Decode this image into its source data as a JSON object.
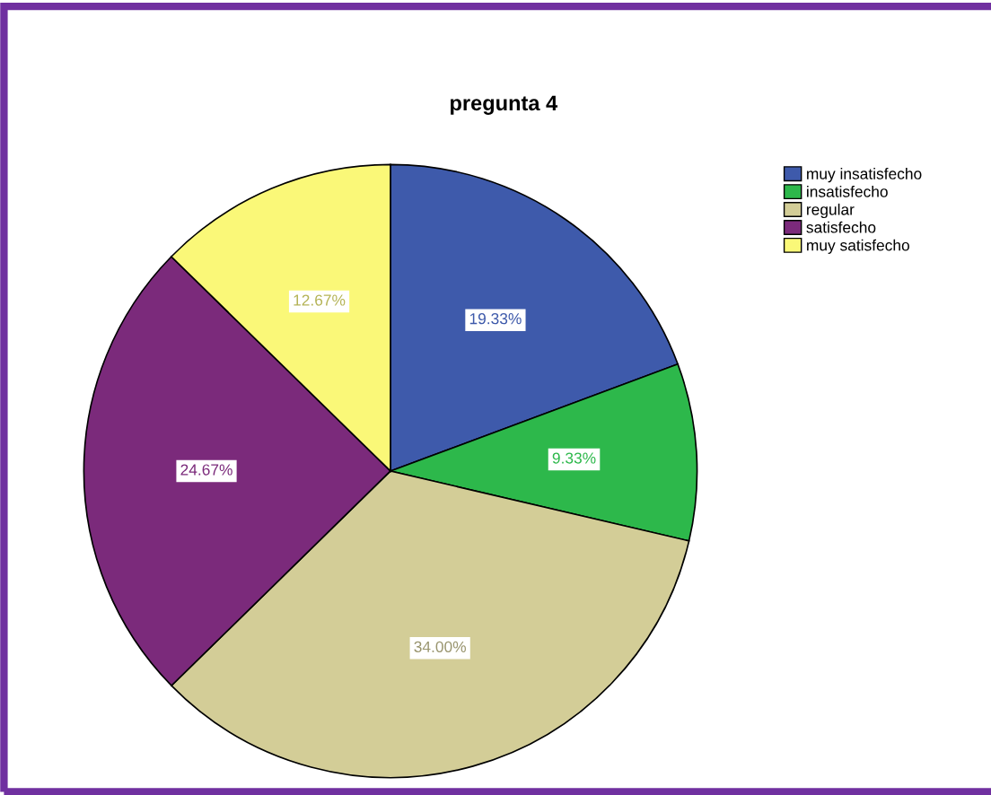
{
  "chart_data": {
    "type": "pie",
    "title": "pregunta 4",
    "categories": [
      "muy insatisfecho",
      "insatisfecho",
      "regular",
      "satisfecho",
      "muy satisfecho"
    ],
    "values": [
      19.33,
      9.33,
      34.0,
      24.67,
      12.67
    ],
    "colors": [
      "#3e5aab",
      "#2db84b",
      "#d3cd97",
      "#7b2a7b",
      "#faf878"
    ],
    "value_labels": [
      "19.33%",
      "9.33%",
      "34.00%",
      "24.67%",
      "12.67%"
    ],
    "legend": "top right"
  }
}
